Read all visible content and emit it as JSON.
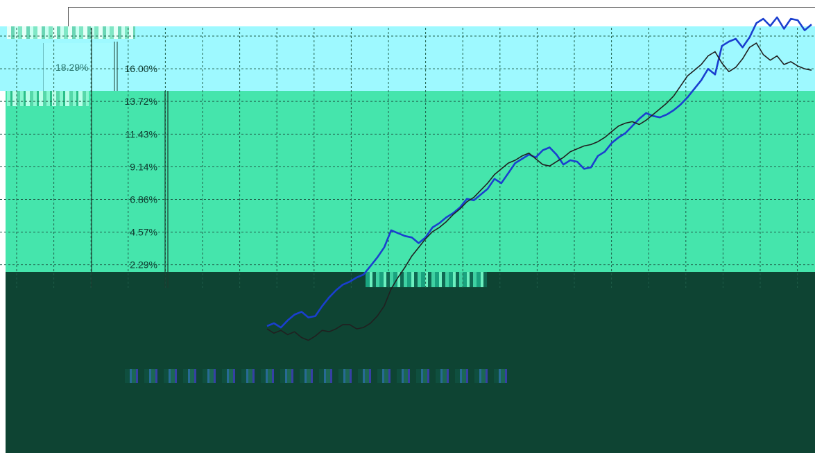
{
  "inset": {
    "label": "18.29%"
  },
  "colors": {
    "cyan_band": "#9ef9ff",
    "green_band": "#45e5ac",
    "dark_band": "#0e4433",
    "series_blue": "#1a3fcf",
    "series_black": "#202020",
    "grid": "#1f5d49"
  },
  "chart_data": {
    "type": "line",
    "xlabel": "",
    "ylabel": "",
    "ytick_labels": [
      "16.00%",
      "13.72%",
      "11.43%",
      "9.14%",
      "6.86%",
      "4.57%",
      "2.29%"
    ],
    "ytick_values": [
      16.0,
      13.72,
      11.43,
      9.14,
      6.86,
      4.57,
      2.29
    ],
    "ylim": [
      -2.0,
      18.29
    ],
    "grid": true,
    "x": [
      1,
      2,
      3,
      4,
      5,
      6,
      7,
      8,
      9,
      10,
      11,
      12,
      13,
      14,
      15,
      16,
      17,
      18,
      19,
      20,
      21,
      22,
      23,
      24,
      25,
      26,
      27,
      28,
      29,
      30,
      31,
      32,
      33,
      34,
      35,
      36,
      37,
      38,
      39,
      40,
      41,
      42,
      43,
      44,
      45,
      46,
      47,
      48,
      49,
      50,
      51,
      52,
      53,
      54,
      55,
      56,
      57,
      58,
      59,
      60,
      61,
      62,
      63,
      64,
      65,
      66,
      67,
      68,
      69,
      70,
      71,
      72,
      73,
      74,
      75,
      76,
      77,
      78,
      79,
      80
    ],
    "series": [
      {
        "values": [
          -2.0,
          -1.8,
          -2.1,
          -1.6,
          -1.2,
          -1.0,
          -1.4,
          -1.3,
          -0.6,
          0.0,
          0.5,
          0.9,
          1.1,
          1.4,
          1.6,
          2.2,
          2.8,
          3.5,
          4.7,
          4.5,
          4.3,
          4.2,
          3.8,
          4.2,
          4.9,
          5.2,
          5.6,
          5.9,
          6.3,
          6.9,
          6.8,
          7.2,
          7.6,
          8.3,
          8.0,
          8.7,
          9.4,
          9.7,
          10.0,
          9.8,
          10.3,
          10.5,
          10.0,
          9.3,
          9.6,
          9.5,
          9.0,
          9.1,
          9.9,
          10.2,
          10.8,
          11.2,
          11.5,
          12.0,
          12.5,
          12.9,
          12.7,
          12.6,
          12.8,
          13.1,
          13.5,
          14.0,
          14.6,
          15.2,
          16.0,
          15.6,
          17.6,
          17.9,
          18.1,
          17.5,
          18.2,
          19.2,
          19.5,
          19.0,
          19.6,
          18.8,
          19.5,
          19.4,
          18.7,
          19.1
        ]
      },
      {
        "values": [
          -2.2,
          -2.5,
          -2.3,
          -2.6,
          -2.4,
          -2.8,
          -3.0,
          -2.7,
          -2.3,
          -2.4,
          -2.2,
          -1.9,
          -1.9,
          -2.2,
          -2.1,
          -1.8,
          -1.3,
          -0.6,
          0.6,
          1.4,
          2.1,
          2.9,
          3.5,
          4.1,
          4.6,
          4.9,
          5.3,
          5.8,
          6.2,
          6.7,
          7.0,
          7.5,
          8.0,
          8.6,
          9.0,
          9.4,
          9.6,
          9.9,
          10.1,
          9.7,
          9.3,
          9.2,
          9.5,
          9.8,
          10.2,
          10.4,
          10.6,
          10.7,
          10.9,
          11.2,
          11.6,
          12.0,
          12.2,
          12.3,
          12.1,
          12.4,
          12.8,
          13.2,
          13.6,
          14.1,
          14.8,
          15.5,
          15.9,
          16.3,
          16.9,
          17.2,
          16.4,
          15.8,
          16.1,
          16.7,
          17.5,
          17.8,
          17.0,
          16.6,
          16.9,
          16.3,
          16.5,
          16.2,
          16.0,
          15.9
        ]
      }
    ]
  }
}
